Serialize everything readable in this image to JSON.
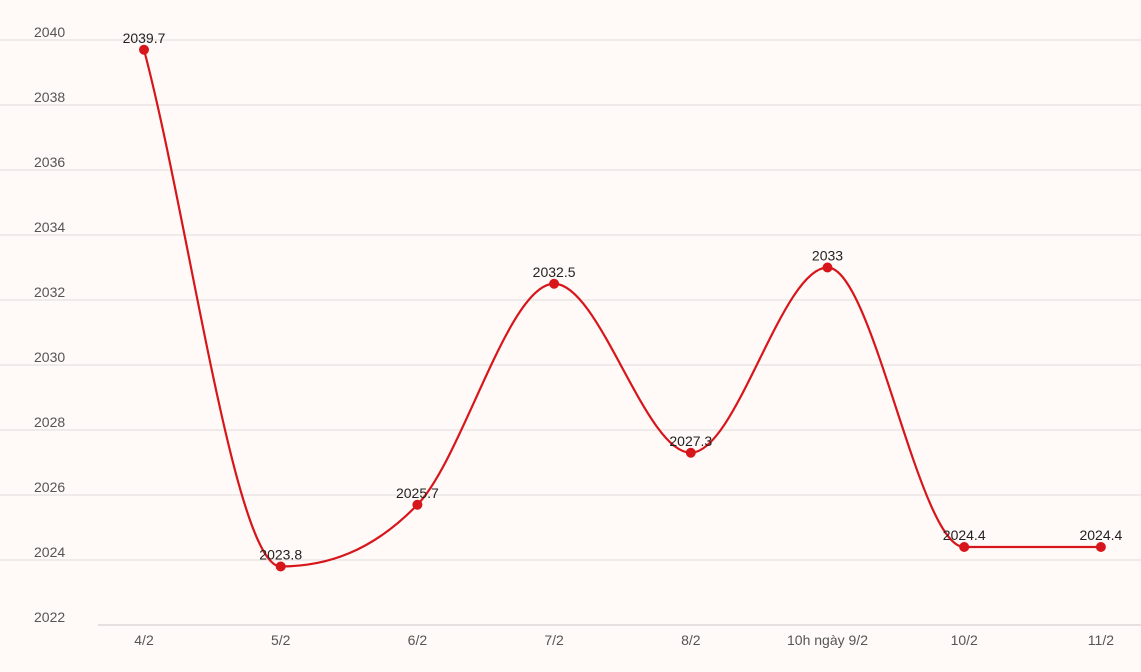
{
  "chart_data": {
    "type": "line",
    "title": "",
    "xlabel": "",
    "ylabel": "",
    "categories": [
      "4/2",
      "5/2",
      "6/2",
      "7/2",
      "8/2",
      "10h ngày 9/2",
      "10/2",
      "11/2"
    ],
    "series": [
      {
        "values": [
          2039.7,
          2023.8,
          2025.7,
          2032.5,
          2027.3,
          2033,
          2024.4,
          2024.4
        ],
        "labels": [
          "2039.7",
          "2023.8",
          "2025.7",
          "2032.5",
          "2027.3",
          "2033",
          "2024.4",
          "2024.4"
        ],
        "color": "#d7161c"
      }
    ],
    "yticks": [
      "2022",
      "2024",
      "2026",
      "2028",
      "2030",
      "2032",
      "2034",
      "2036",
      "2038",
      "2040"
    ],
    "ylim": [
      2022,
      2040
    ],
    "grid": true,
    "legend": "none",
    "smooth": true
  },
  "colors": {
    "background": "#fffaf7",
    "line": "#d7161c",
    "grid": "#dcdcdc"
  }
}
